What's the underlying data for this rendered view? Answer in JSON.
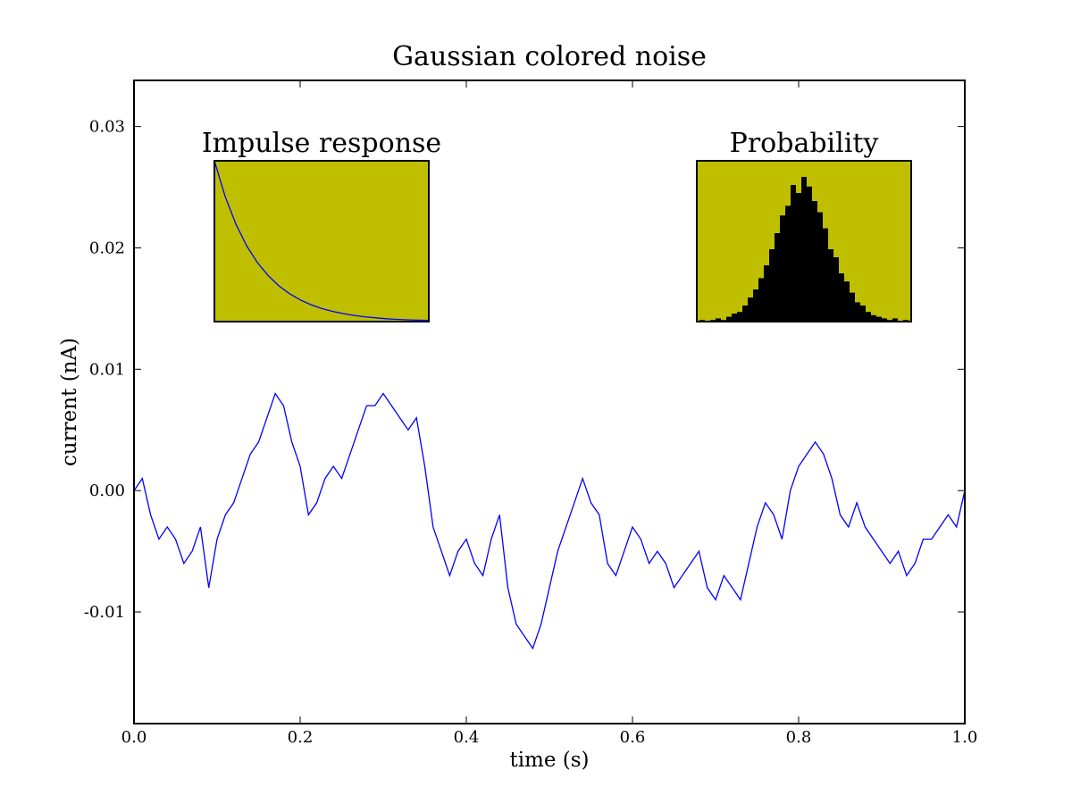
{
  "chart_data": [
    {
      "type": "line",
      "title": "Gaussian colored noise",
      "xlabel": "time (s)",
      "ylabel": "current (nA)",
      "xlim": [
        0.0,
        1.0
      ],
      "ylim": [
        -0.0192,
        0.0338
      ],
      "x_ticks": [
        0.0,
        0.2,
        0.4,
        0.6,
        0.8,
        1.0
      ],
      "x_tick_labels": [
        "0.0",
        "0.2",
        "0.4",
        "0.6",
        "0.8",
        "1.0"
      ],
      "y_ticks": [
        -0.01,
        0.0,
        0.01,
        0.02,
        0.03
      ],
      "y_tick_labels": [
        "-0.01",
        "0.00",
        "0.01",
        "0.02",
        "0.03"
      ],
      "grid": false,
      "line_color": "#0000ff",
      "series": [
        {
          "x": [
            0.0,
            0.01,
            0.02,
            0.03,
            0.04,
            0.05,
            0.06,
            0.07,
            0.08,
            0.09,
            0.1,
            0.11,
            0.12,
            0.13,
            0.14,
            0.15,
            0.16,
            0.17,
            0.18,
            0.19,
            0.2,
            0.21,
            0.22,
            0.23,
            0.24,
            0.25,
            0.26,
            0.27,
            0.28,
            0.29,
            0.3,
            0.31,
            0.32,
            0.33,
            0.34,
            0.35,
            0.36,
            0.37,
            0.38,
            0.39,
            0.4,
            0.41,
            0.42,
            0.43,
            0.44,
            0.45,
            0.46,
            0.47,
            0.48,
            0.49,
            0.5,
            0.51,
            0.52,
            0.53,
            0.54,
            0.55,
            0.56,
            0.57,
            0.58,
            0.59,
            0.6,
            0.61,
            0.62,
            0.63,
            0.64,
            0.65,
            0.66,
            0.67,
            0.68,
            0.69,
            0.7,
            0.71,
            0.72,
            0.73,
            0.74,
            0.75,
            0.76,
            0.77,
            0.78,
            0.79,
            0.8,
            0.81,
            0.82,
            0.83,
            0.84,
            0.85,
            0.86,
            0.87,
            0.88,
            0.89,
            0.9,
            0.91,
            0.92,
            0.93,
            0.94,
            0.95,
            0.96,
            0.97,
            0.98,
            0.99,
            1.0
          ],
          "values": [
            0.0,
            0.001,
            -0.002,
            -0.004,
            -0.003,
            -0.004,
            -0.006,
            -0.005,
            -0.003,
            -0.008,
            -0.004,
            -0.002,
            -0.001,
            0.001,
            0.003,
            0.004,
            0.006,
            0.008,
            0.007,
            0.004,
            0.002,
            -0.002,
            -0.001,
            0.001,
            0.002,
            0.001,
            0.003,
            0.005,
            0.007,
            0.007,
            0.008,
            0.007,
            0.006,
            0.005,
            0.006,
            0.002,
            -0.003,
            -0.005,
            -0.007,
            -0.005,
            -0.004,
            -0.006,
            -0.007,
            -0.004,
            -0.002,
            -0.008,
            -0.011,
            -0.012,
            -0.013,
            -0.011,
            -0.008,
            -0.005,
            -0.003,
            -0.001,
            0.001,
            -0.001,
            -0.002,
            -0.006,
            -0.007,
            -0.005,
            -0.003,
            -0.004,
            -0.006,
            -0.005,
            -0.006,
            -0.008,
            -0.007,
            -0.006,
            -0.005,
            -0.008,
            -0.009,
            -0.007,
            -0.008,
            -0.009,
            -0.006,
            -0.003,
            -0.001,
            -0.002,
            -0.004,
            0.0,
            0.002,
            0.003,
            0.004,
            0.003,
            0.001,
            -0.002,
            -0.003,
            -0.001,
            -0.003,
            -0.004,
            -0.005,
            -0.006,
            -0.005,
            -0.007,
            -0.006,
            -0.004,
            -0.004,
            -0.003,
            -0.002,
            -0.003,
            0.0
          ]
        }
      ]
    },
    {
      "type": "line",
      "title": "Impulse response",
      "background": "#bfbf00",
      "line_color": "#0000ff",
      "x": [
        0.0,
        0.05,
        0.1,
        0.15,
        0.2,
        0.25,
        0.3,
        0.35,
        0.4,
        0.45,
        0.5,
        0.55,
        0.6,
        0.65,
        0.7,
        0.75,
        0.8,
        0.85,
        0.9,
        0.95,
        1.0
      ],
      "values": [
        1.0,
        0.779,
        0.607,
        0.472,
        0.368,
        0.287,
        0.223,
        0.174,
        0.135,
        0.105,
        0.082,
        0.064,
        0.05,
        0.039,
        0.03,
        0.024,
        0.018,
        0.014,
        0.011,
        0.009,
        0.007
      ]
    },
    {
      "type": "bar",
      "title": "Probability",
      "background": "#bfbf00",
      "bar_color": "#000000",
      "x": [
        0.0,
        0.025,
        0.05,
        0.075,
        0.1,
        0.125,
        0.15,
        0.175,
        0.2,
        0.225,
        0.25,
        0.275,
        0.3,
        0.325,
        0.35,
        0.375,
        0.4,
        0.425,
        0.45,
        0.475,
        0.5,
        0.525,
        0.55,
        0.575,
        0.6,
        0.625,
        0.65,
        0.675,
        0.7,
        0.725,
        0.75,
        0.775,
        0.8,
        0.825,
        0.85,
        0.875,
        0.9,
        0.925,
        0.95,
        0.975,
        1.0
      ],
      "values": [
        0.0,
        0.01,
        0.0,
        0.01,
        0.02,
        0.01,
        0.03,
        0.05,
        0.06,
        0.1,
        0.15,
        0.2,
        0.27,
        0.35,
        0.45,
        0.55,
        0.66,
        0.72,
        0.85,
        0.8,
        0.9,
        0.84,
        0.75,
        0.68,
        0.58,
        0.45,
        0.4,
        0.3,
        0.25,
        0.18,
        0.12,
        0.1,
        0.06,
        0.04,
        0.03,
        0.02,
        0.01,
        0.02,
        0.0,
        0.01,
        0.0
      ]
    }
  ]
}
